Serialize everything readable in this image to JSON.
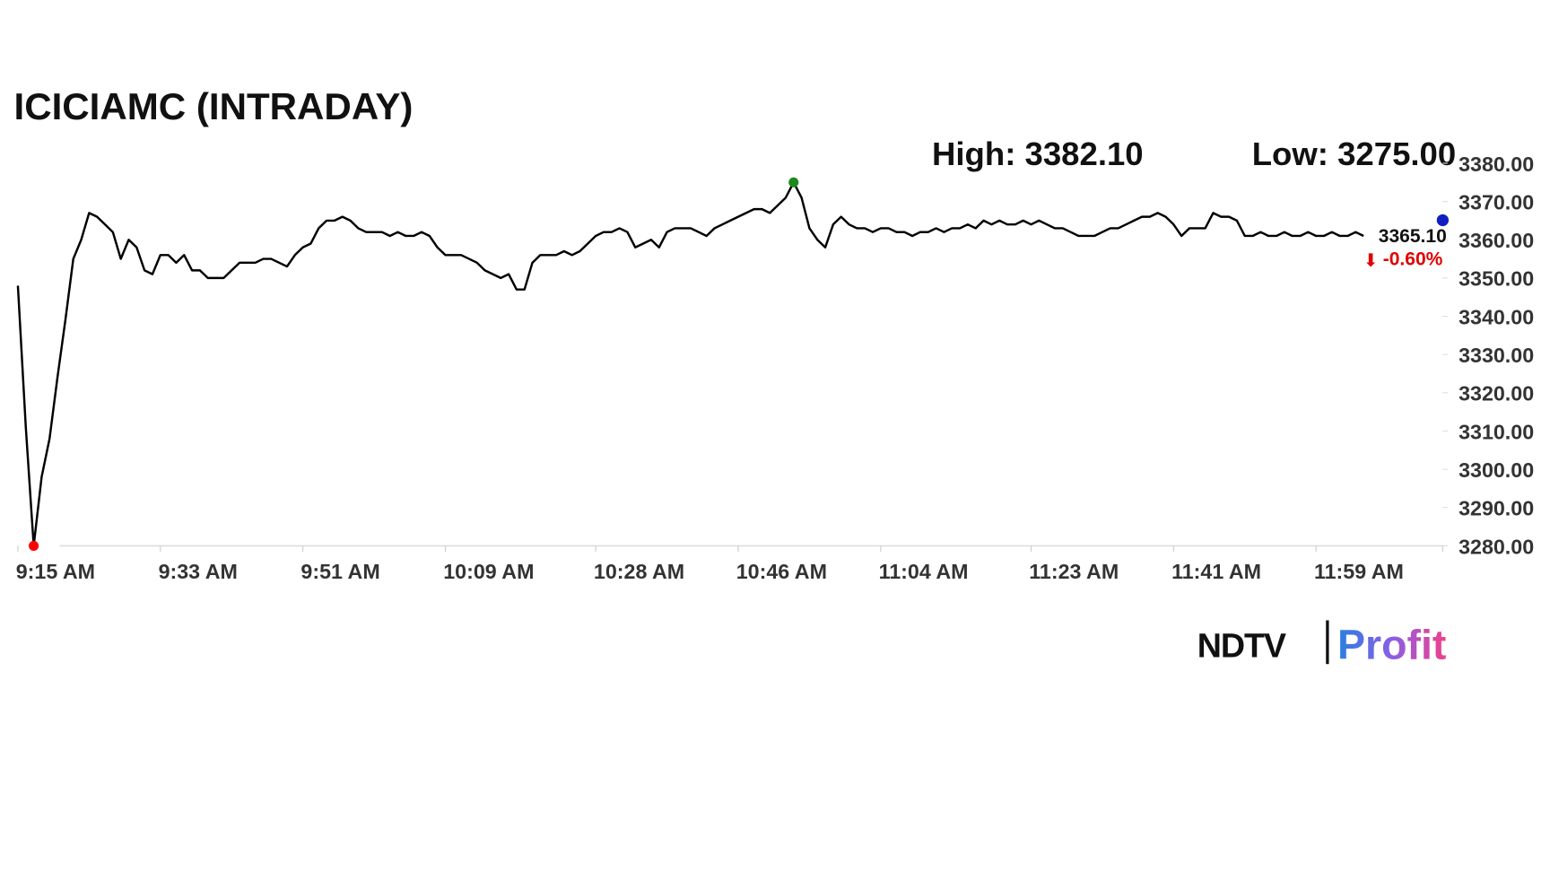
{
  "chart_data": {
    "type": "line",
    "title": "ICICIAMC (INTRADAY)",
    "annotations": [
      "High: 3382.10",
      "Low: 3275.00"
    ],
    "categories": [
      "9:15 AM",
      null,
      null,
      null,
      null,
      null,
      null,
      null,
      null,
      null,
      null,
      null,
      null,
      null,
      null,
      null,
      null,
      null,
      "9:33 AM",
      null,
      null,
      null,
      null,
      null,
      null,
      null,
      null,
      null,
      null,
      null,
      null,
      null,
      null,
      null,
      null,
      null,
      "9:51 AM",
      null,
      null,
      null,
      null,
      null,
      null,
      null,
      null,
      null,
      null,
      null,
      null,
      null,
      null,
      null,
      null,
      null,
      "10:09 AM",
      null,
      null,
      null,
      null,
      null,
      null,
      null,
      null,
      null,
      null,
      null,
      null,
      null,
      null,
      null,
      null,
      null,
      null,
      "10:28 AM",
      null,
      null,
      null,
      null,
      null,
      null,
      null,
      null,
      null,
      null,
      null,
      null,
      null,
      null,
      null,
      null,
      null,
      "10:46 AM",
      null,
      null,
      null,
      null,
      null,
      null,
      null,
      null,
      null,
      null,
      null,
      null,
      null,
      null,
      null,
      null,
      null,
      "11:04 AM",
      null,
      null,
      null,
      null,
      null,
      null,
      null,
      null,
      null,
      null,
      null,
      null,
      null,
      null,
      null,
      null,
      null,
      null,
      "11:23 AM",
      null,
      null,
      null,
      null,
      null,
      null,
      null,
      null,
      null,
      null,
      null,
      null,
      null,
      null,
      null,
      null,
      null,
      "11:41 AM",
      null,
      null,
      null,
      null,
      null,
      null,
      null,
      null,
      null,
      null,
      null,
      null,
      null,
      null,
      null,
      null,
      null,
      "11:59 AM",
      null,
      null,
      null,
      null,
      null,
      null,
      null,
      null,
      null,
      null,
      null,
      null,
      null,
      null,
      null,
      null
    ],
    "series": [
      {
        "name": "ICICIAMC",
        "color": "#000000",
        "values": [
          3348,
          3311,
          3280,
          3298,
          3308,
          3324,
          3339,
          3355,
          3360,
          3367,
          3366,
          3364,
          3362,
          3355,
          3360,
          3358,
          3352,
          3351,
          3356,
          3356,
          3354,
          3356,
          3352,
          3352,
          3350,
          3350,
          3350,
          3352,
          3354,
          3354,
          3354,
          3355,
          3355,
          3354,
          3353,
          3356,
          3358,
          3359,
          3363,
          3365,
          3365,
          3366,
          3365,
          3363,
          3362,
          3362,
          3362,
          3361,
          3362,
          3361,
          3361,
          3362,
          3361,
          3358,
          3356,
          3356,
          3356,
          3355,
          3354,
          3352,
          3351,
          3350,
          3351,
          3347,
          3347,
          3354,
          3356,
          3356,
          3356,
          3357,
          3356,
          3357,
          3359,
          3361,
          3362,
          3362,
          3363,
          3362,
          3358,
          3359,
          3360,
          3358,
          3362,
          3363,
          3363,
          3363,
          3362,
          3361,
          3363,
          3364,
          3365,
          3366,
          3367,
          3368,
          3368,
          3367,
          3369,
          3371,
          3375,
          3371,
          3363,
          3360,
          3358,
          3364,
          3366,
          3364,
          3363,
          3363,
          3362,
          3363,
          3363,
          3362,
          3362,
          3361,
          3362,
          3362,
          3363,
          3362,
          3363,
          3363,
          3364,
          3363,
          3365,
          3364,
          3365,
          3364,
          3364,
          3365,
          3364,
          3365,
          3364,
          3363,
          3363,
          3362,
          3361,
          3361,
          3361,
          3362,
          3363,
          3363,
          3364,
          3365,
          3366,
          3366,
          3367,
          3366,
          3364,
          3361,
          3363,
          3363,
          3363,
          3367,
          3366,
          3366,
          3365,
          3361,
          3361,
          3362,
          3361,
          3361,
          3362,
          3361,
          3361,
          3362,
          3361,
          3361,
          3362,
          3361,
          3361,
          3362,
          3361,
          null,
          null,
          null,
          null,
          null,
          null,
          null,
          null,
          null,
          null
        ]
      }
    ],
    "high_index_color": "#1a8a1a",
    "low_index_color": "#ff0000",
    "last_price": {
      "value": 3365.1,
      "label": "3365.10"
    },
    "last_color": "#1020c0",
    "change": {
      "value": -0.6,
      "label": "-0.60%"
    },
    "change_color": "#e00000",
    "ylim": [
      3280,
      3380
    ],
    "yticks": [
      {
        "value": 3280,
        "label": "3280.00"
      },
      {
        "value": 3290,
        "label": "3290.00"
      },
      {
        "value": 3300,
        "label": "3300.00"
      },
      {
        "value": 3310,
        "label": "3310.00"
      },
      {
        "value": 3320,
        "label": "3320.00"
      },
      {
        "value": 3330,
        "label": "3330.00"
      },
      {
        "value": 3340,
        "label": "3340.00"
      },
      {
        "value": 3350,
        "label": "3350.00"
      },
      {
        "value": 3360,
        "label": "3360.00"
      },
      {
        "value": 3370,
        "label": "3370.00"
      },
      {
        "value": 3380,
        "label": "3380.00"
      }
    ],
    "grid": false
  },
  "brand": [
    "NDTV",
    "Profit"
  ]
}
